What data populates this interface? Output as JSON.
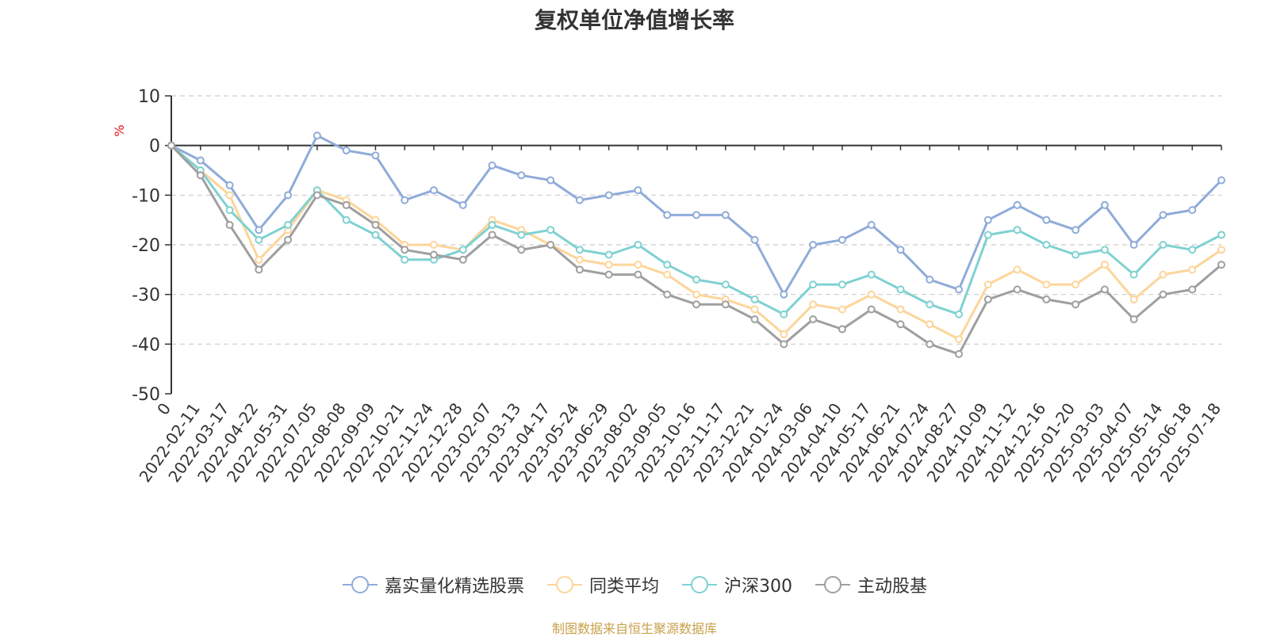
{
  "title": "复权单位净值增长率",
  "source_text": "制图数据来自恒生聚源数据库",
  "chart_data": {
    "type": "line",
    "title": "复权单位净值增长率",
    "xlabel": "",
    "ylabel": "%",
    "ylim": [
      -50,
      10
    ],
    "yticks": [
      10,
      0,
      -10,
      -20,
      -30,
      -40,
      -50
    ],
    "grid": true,
    "legend_position": "bottom",
    "x": [
      "0",
      "2022-02-11",
      "2022-03-17",
      "2022-04-22",
      "2022-05-31",
      "2022-07-05",
      "2022-08-08",
      "2022-09-09",
      "2022-10-21",
      "2022-11-24",
      "2022-12-28",
      "2023-02-07",
      "2023-03-13",
      "2023-04-17",
      "2023-05-24",
      "2023-06-29",
      "2023-08-02",
      "2023-09-05",
      "2023-10-16",
      "2023-11-17",
      "2023-12-21",
      "2024-01-24",
      "2024-03-06",
      "2024-04-10",
      "2024-05-17",
      "2024-06-21",
      "2024-07-24",
      "2024-08-27",
      "2024-10-09",
      "2024-11-12",
      "2024-12-16",
      "2025-01-20",
      "2025-03-03",
      "2025-04-07",
      "2025-05-14",
      "2025-06-18",
      "2025-07-18"
    ],
    "series": [
      {
        "name": "嘉实量化精选股票",
        "color": "#8fabd9",
        "values": [
          0,
          -3,
          -8,
          -17,
          -10,
          2,
          -1,
          -2,
          -11,
          -9,
          -12,
          -4,
          -6,
          -7,
          -11,
          -10,
          -9,
          -14,
          -14,
          -14,
          -19,
          -30,
          -20,
          -19,
          -16,
          -21,
          -27,
          -29,
          -15,
          -12,
          -15,
          -17,
          -12,
          -20,
          -14,
          -13,
          -7
        ]
      },
      {
        "name": "同类平均",
        "color": "#fdd59a",
        "values": [
          0,
          -5,
          -10,
          -23,
          -17,
          -9,
          -11,
          -15,
          -20,
          -20,
          -21,
          -15,
          -17,
          -20,
          -23,
          -24,
          -24,
          -26,
          -30,
          -31,
          -33,
          -38,
          -32,
          -33,
          -30,
          -33,
          -36,
          -39,
          -28,
          -25,
          -28,
          -28,
          -24,
          -31,
          -26,
          -25,
          -21
        ]
      },
      {
        "name": "沪深300",
        "color": "#7fd1d1",
        "values": [
          0,
          -5,
          -13,
          -19,
          -16,
          -9,
          -15,
          -18,
          -23,
          -23,
          -21,
          -16,
          -18,
          -17,
          -21,
          -22,
          -20,
          -24,
          -27,
          -28,
          -31,
          -34,
          -28,
          -28,
          -26,
          -29,
          -32,
          -34,
          -18,
          -17,
          -20,
          -22,
          -21,
          -26,
          -20,
          -21,
          -18
        ]
      },
      {
        "name": "主动股基",
        "color": "#9f9f9f",
        "values": [
          0,
          -6,
          -16,
          -25,
          -19,
          -10,
          -12,
          -16,
          -21,
          -22,
          -23,
          -18,
          -21,
          -20,
          -25,
          -26,
          -26,
          -30,
          -32,
          -32,
          -35,
          -40,
          -35,
          -37,
          -33,
          -36,
          -40,
          -42,
          -31,
          -29,
          -31,
          -32,
          -29,
          -35,
          -30,
          -29,
          -24
        ]
      }
    ]
  }
}
